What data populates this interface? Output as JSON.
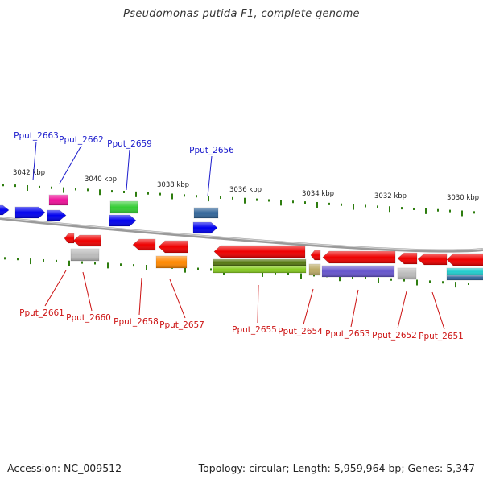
{
  "title": "Pseudomonas putida F1, complete genome",
  "footer": {
    "accession": "Accession: NC_009512",
    "summary": "Topology: circular; Length: 5,959,964 bp; Genes: 5,347"
  },
  "colors": {
    "backbone": "#8a8a8a",
    "tick": "#2e7d0f",
    "label_top": "#1a1acc",
    "label_bottom": "#cc1111",
    "callout_top": "#1a1acc",
    "callout_bottom": "#cc1111"
  },
  "scale_labels": [
    "3042 kbp",
    "3040 kbp",
    "3038 kbp",
    "3036 kbp",
    "3034 kbp",
    "3032 kbp",
    "3030 kbp"
  ],
  "top_genes": [
    {
      "label": "Pput_2663",
      "color": "#0000ee"
    },
    {
      "label": "Pput_2662",
      "color": "#ee1199"
    },
    {
      "label": "Pput_2659",
      "color": "#33cc33"
    },
    {
      "label": "Pput_2656",
      "color": "#336699"
    }
  ],
  "bottom_genes": [
    {
      "label": "Pput_2661",
      "color": "#ee0000"
    },
    {
      "label": "Pput_2660",
      "color": "#bbbbbb"
    },
    {
      "label": "Pput_2658",
      "color": "#ee0000"
    },
    {
      "label": "Pput_2657",
      "color": "#ff8800"
    },
    {
      "label": "Pput_2655",
      "color": "#88cc22"
    },
    {
      "label": "Pput_2654",
      "color": "#bbaa66"
    },
    {
      "label": "Pput_2653",
      "color": "#6655cc"
    },
    {
      "label": "Pput_2652",
      "color": "#bbbbbb"
    },
    {
      "label": "Pput_2651",
      "color": "#22cccc"
    }
  ]
}
